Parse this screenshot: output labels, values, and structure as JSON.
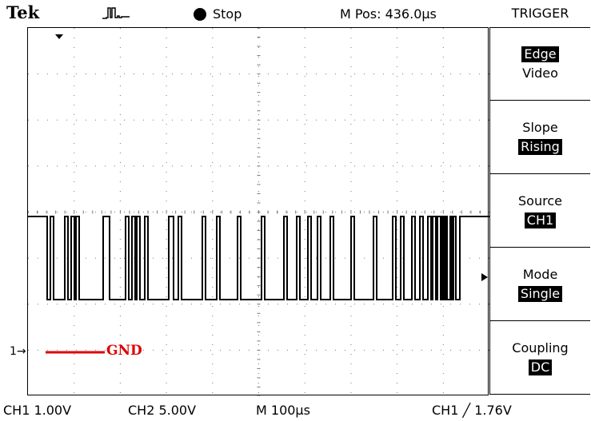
{
  "header": {
    "brand": "Tek",
    "acquisition_icon": "pulse-waveform-icon",
    "run_state": "Stop",
    "m_pos": "M Pos: 436.0µs"
  },
  "menu": {
    "title": "TRIGGER",
    "items": [
      {
        "name": "Edge",
        "value": "Video",
        "highlight": "name"
      },
      {
        "name": "Slope",
        "value": "Rising",
        "highlight": "value"
      },
      {
        "name": "Source",
        "value": "CH1",
        "highlight": "value"
      },
      {
        "name": "Mode",
        "value": "Single",
        "highlight": "value"
      },
      {
        "name": "Coupling",
        "value": "DC",
        "highlight": "value"
      }
    ]
  },
  "screen": {
    "ground_label": "GND",
    "ch1_marker": "1→",
    "trace_color": "#000000",
    "ground_color": "#dd0000"
  },
  "status": {
    "ch1": "CH1  1.00V",
    "ch2": "CH2  5.00V",
    "time": "M 100µs",
    "trigger": "CH1  ╱  1.76V"
  }
}
